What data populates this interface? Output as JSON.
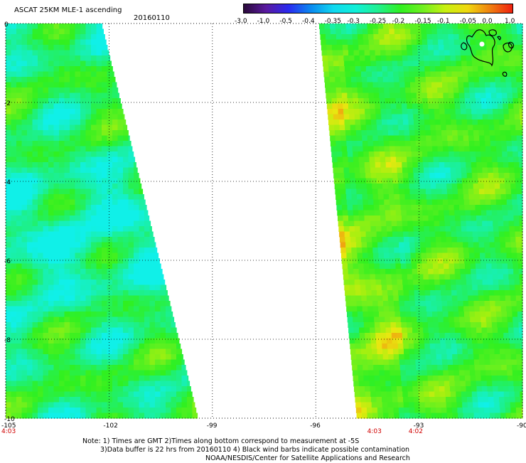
{
  "header": {
    "title": "ASCAT 25KM MLE-1 ascending",
    "date": "20160110"
  },
  "colorbar": {
    "tick_labels": [
      "-3.0",
      "-1.0",
      "-0.5",
      "-0.4",
      "-0.35",
      "-0.3",
      "-0.25",
      "-0.2",
      "-0.15",
      "-0.1",
      "-0.05",
      "0.0",
      "1.0"
    ],
    "colors": [
      "#2a0a3a",
      "#5a1aa0",
      "#2a2af0",
      "#0a8af0",
      "#10d8f0",
      "#10f0d8",
      "#20f090",
      "#30f020",
      "#70f020",
      "#c8f010",
      "#f0d810",
      "#f08010",
      "#f02010"
    ]
  },
  "chart_data": {
    "type": "heatmap",
    "title": "ASCAT 25KM MLE-1 ascending",
    "xlim": [
      -105,
      -90
    ],
    "ylim": [
      -10,
      0
    ],
    "x_ticks": [
      "-105",
      "-102",
      "-99",
      "-96",
      "-93",
      "-90"
    ],
    "y_ticks": [
      "0",
      "-2",
      "-4",
      "-6",
      "-8",
      "-10"
    ],
    "grid": true,
    "colorbar_range": [
      -3.0,
      1.0
    ],
    "swaths": [
      {
        "name": "west swath",
        "lon_west": -105,
        "lon_east_top": -102.5,
        "lon_east_bottom": -99.5,
        "dominant_values": "-0.3 to -0.2",
        "pass_time": "4:03"
      },
      {
        "name": "east swath",
        "lon_west_top": -96,
        "lon_west_bottom": -94.8,
        "lon_east": -90,
        "dominant_values": "-0.25 to -0.1",
        "pass_time": "4:02"
      }
    ],
    "time_labels": [
      {
        "text": "4:03",
        "lon": -105
      },
      {
        "text": "4:03",
        "lon": -94.3
      },
      {
        "text": "4:02",
        "lon": -93.1
      }
    ],
    "colors": {
      "time_labels": "#d00000",
      "grid": "#000000"
    }
  },
  "notes": {
    "line1": "Note: 1) Times are GMT 2)Times along bottom correspond to measurement at -5S",
    "line2": "3)Data buffer is 22 hrs from 20160110 4) Black wind barbs indicate possible contamination",
    "line3": "NOAA/NESDIS/Center for Satellite Applications and Research"
  }
}
